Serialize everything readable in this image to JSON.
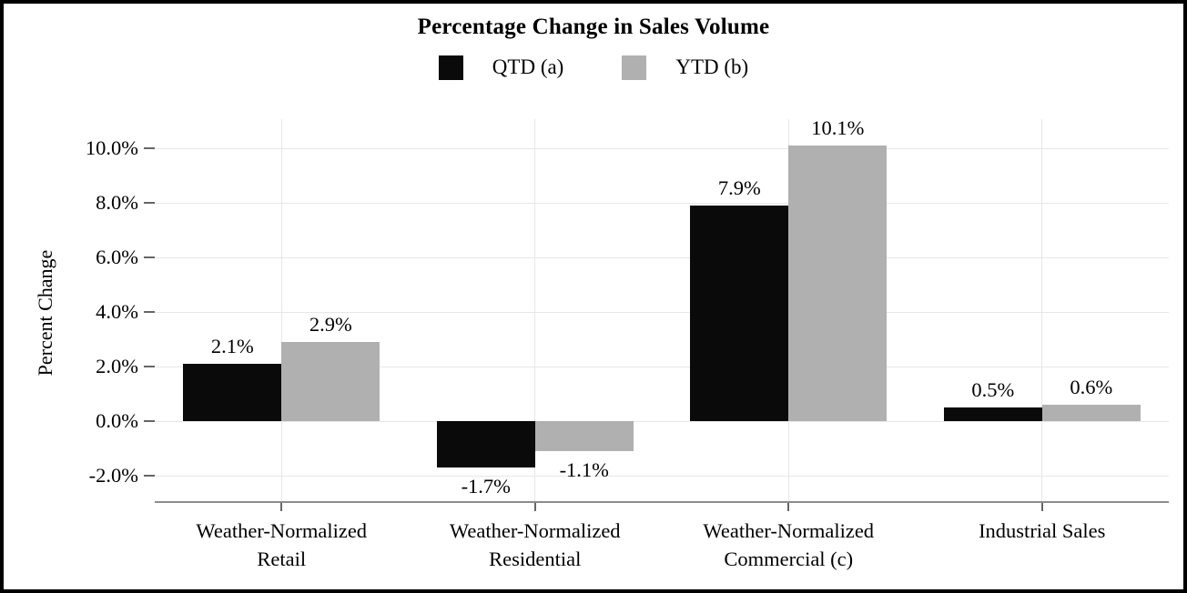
{
  "figure": {
    "title": "Percentage Change in Sales Volume",
    "y_axis_title": "Percent Change"
  },
  "chart_data": {
    "type": "bar",
    "title": "Percentage Change in Sales Volume",
    "ylabel": "Percent Change",
    "xlabel": "",
    "categories": [
      "Weather-Normalized Retail",
      "Weather-Normalized Residential",
      "Weather-Normalized Commercial (c)",
      "Industrial Sales"
    ],
    "categories_display": [
      [
        "Weather-Normalized",
        "Retail"
      ],
      [
        "Weather-Normalized",
        "Residential"
      ],
      [
        "Weather-Normalized",
        "Commercial (c)"
      ],
      [
        "Industrial Sales"
      ]
    ],
    "series": [
      {
        "name": "QTD (a)",
        "color": "#0a0a0a",
        "values": [
          2.1,
          -1.7,
          7.9,
          0.5
        ],
        "labels": [
          "2.1%",
          "-1.7%",
          "7.9%",
          "0.5%"
        ]
      },
      {
        "name": "YTD (b)",
        "color": "#b0b0b0",
        "values": [
          2.9,
          -1.1,
          10.1,
          0.6
        ],
        "labels": [
          "2.9%",
          "-1.1%",
          "10.1%",
          "0.6%"
        ]
      }
    ],
    "y_ticks": [
      {
        "value": -2,
        "label": "-2.0%"
      },
      {
        "value": 0,
        "label": "0.0%"
      },
      {
        "value": 2,
        "label": "2.0%"
      },
      {
        "value": 4,
        "label": "4.0%"
      },
      {
        "value": 6,
        "label": "6.0%"
      },
      {
        "value": 8,
        "label": "8.0%"
      },
      {
        "value": 10,
        "label": "10.0%"
      }
    ],
    "ylim": [
      -2.93,
      11.07
    ],
    "grid": true,
    "legend_position": "top-center",
    "colors": {
      "grid_line": "#e7e7e7",
      "axis_line": "#8c8c8c",
      "tick_mark": "#666666",
      "text": "#000000",
      "background": "#ffffff",
      "border": "#000000"
    }
  }
}
